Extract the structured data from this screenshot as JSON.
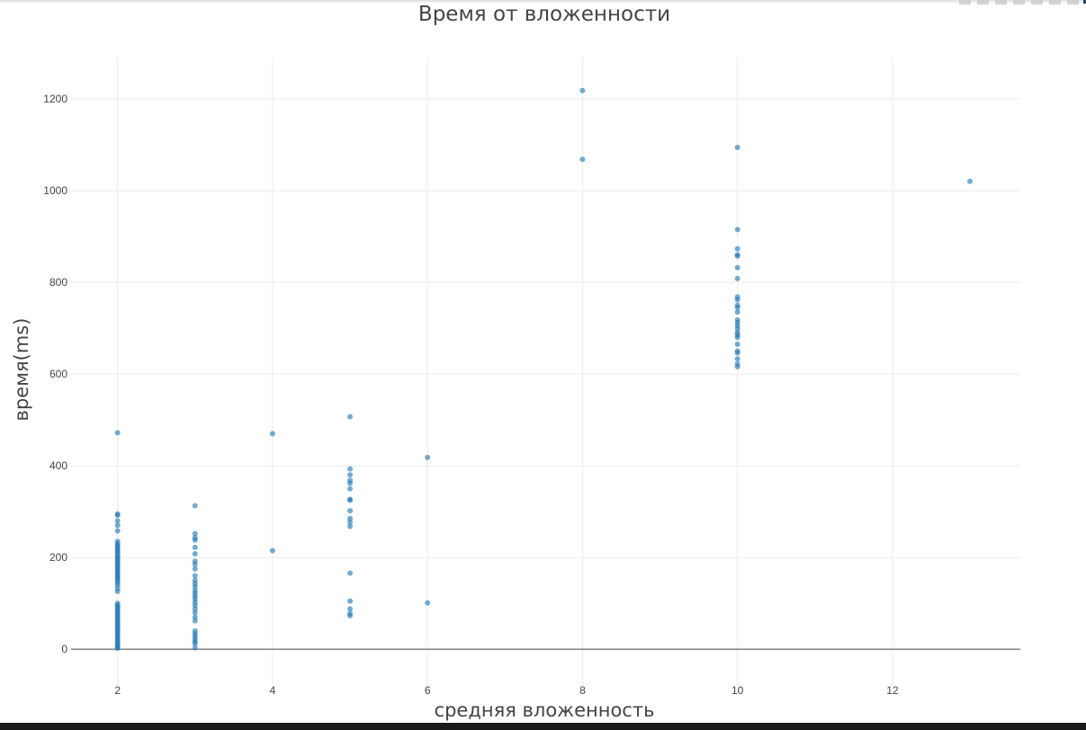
{
  "chart_data": {
    "type": "scatter",
    "title": "Время от вложенности",
    "xlabel": "средняя вложенность",
    "ylabel": "время(ms)",
    "xlim": [
      1.4,
      13.65
    ],
    "ylim": [
      -80,
      1290
    ],
    "xticks": [
      2,
      4,
      6,
      8,
      10,
      12
    ],
    "yticks": [
      0,
      200,
      400,
      600,
      800,
      1000,
      1200
    ],
    "grid": true,
    "marker_color": "#1f77b4",
    "series": [
      {
        "points": [
          [
            2,
            472
          ],
          [
            2,
            295
          ],
          [
            2,
            292
          ],
          [
            2,
            280
          ],
          [
            2,
            270
          ],
          [
            2,
            258
          ],
          [
            2,
            235
          ],
          [
            2,
            230
          ],
          [
            2,
            226
          ],
          [
            2,
            222
          ],
          [
            2,
            218
          ],
          [
            2,
            214
          ],
          [
            2,
            210
          ],
          [
            2,
            206
          ],
          [
            2,
            202
          ],
          [
            2,
            198
          ],
          [
            2,
            194
          ],
          [
            2,
            190
          ],
          [
            2,
            186
          ],
          [
            2,
            182
          ],
          [
            2,
            178
          ],
          [
            2,
            174
          ],
          [
            2,
            170
          ],
          [
            2,
            166
          ],
          [
            2,
            162
          ],
          [
            2,
            158
          ],
          [
            2,
            154
          ],
          [
            2,
            150
          ],
          [
            2,
            145
          ],
          [
            2,
            140
          ],
          [
            2,
            133
          ],
          [
            2,
            126
          ],
          [
            2,
            100
          ],
          [
            2,
            96
          ],
          [
            2,
            92
          ],
          [
            2,
            88
          ],
          [
            2,
            84
          ],
          [
            2,
            80
          ],
          [
            2,
            76
          ],
          [
            2,
            72
          ],
          [
            2,
            68
          ],
          [
            2,
            64
          ],
          [
            2,
            60
          ],
          [
            2,
            56
          ],
          [
            2,
            52
          ],
          [
            2,
            48
          ],
          [
            2,
            44
          ],
          [
            2,
            40
          ],
          [
            2,
            36
          ],
          [
            2,
            32
          ],
          [
            2,
            28
          ],
          [
            2,
            24
          ],
          [
            2,
            20
          ],
          [
            2,
            16
          ],
          [
            2,
            12
          ],
          [
            2,
            8
          ],
          [
            2,
            5
          ],
          [
            2,
            2
          ],
          [
            3,
            313
          ],
          [
            3,
            252
          ],
          [
            3,
            243
          ],
          [
            3,
            238
          ],
          [
            3,
            222
          ],
          [
            3,
            208
          ],
          [
            3,
            192
          ],
          [
            3,
            185
          ],
          [
            3,
            175
          ],
          [
            3,
            160
          ],
          [
            3,
            150
          ],
          [
            3,
            143
          ],
          [
            3,
            136
          ],
          [
            3,
            128
          ],
          [
            3,
            122
          ],
          [
            3,
            116
          ],
          [
            3,
            110
          ],
          [
            3,
            103
          ],
          [
            3,
            96
          ],
          [
            3,
            88
          ],
          [
            3,
            80
          ],
          [
            3,
            70
          ],
          [
            3,
            62
          ],
          [
            3,
            40
          ],
          [
            3,
            34
          ],
          [
            3,
            28
          ],
          [
            3,
            22
          ],
          [
            3,
            17
          ],
          [
            3,
            12
          ],
          [
            3,
            3
          ],
          [
            4,
            470
          ],
          [
            4,
            215
          ],
          [
            5,
            507
          ],
          [
            5,
            393
          ],
          [
            5,
            380
          ],
          [
            5,
            368
          ],
          [
            5,
            362
          ],
          [
            5,
            350
          ],
          [
            5,
            327
          ],
          [
            5,
            325
          ],
          [
            5,
            302
          ],
          [
            5,
            285
          ],
          [
            5,
            277
          ],
          [
            5,
            268
          ],
          [
            5,
            166
          ],
          [
            5,
            105
          ],
          [
            5,
            88
          ],
          [
            5,
            78
          ],
          [
            5,
            73
          ],
          [
            6,
            418
          ],
          [
            6,
            101
          ],
          [
            8,
            1218
          ],
          [
            8,
            1068
          ],
          [
            10,
            1094
          ],
          [
            10,
            915
          ],
          [
            10,
            873
          ],
          [
            10,
            860
          ],
          [
            10,
            857
          ],
          [
            10,
            832
          ],
          [
            10,
            808
          ],
          [
            10,
            768
          ],
          [
            10,
            762
          ],
          [
            10,
            750
          ],
          [
            10,
            745
          ],
          [
            10,
            735
          ],
          [
            10,
            718
          ],
          [
            10,
            712
          ],
          [
            10,
            705
          ],
          [
            10,
            698
          ],
          [
            10,
            690
          ],
          [
            10,
            685
          ],
          [
            10,
            680
          ],
          [
            10,
            665
          ],
          [
            10,
            650
          ],
          [
            10,
            646
          ],
          [
            10,
            633
          ],
          [
            10,
            622
          ],
          [
            10,
            616
          ],
          [
            13,
            1020
          ]
        ]
      }
    ]
  }
}
